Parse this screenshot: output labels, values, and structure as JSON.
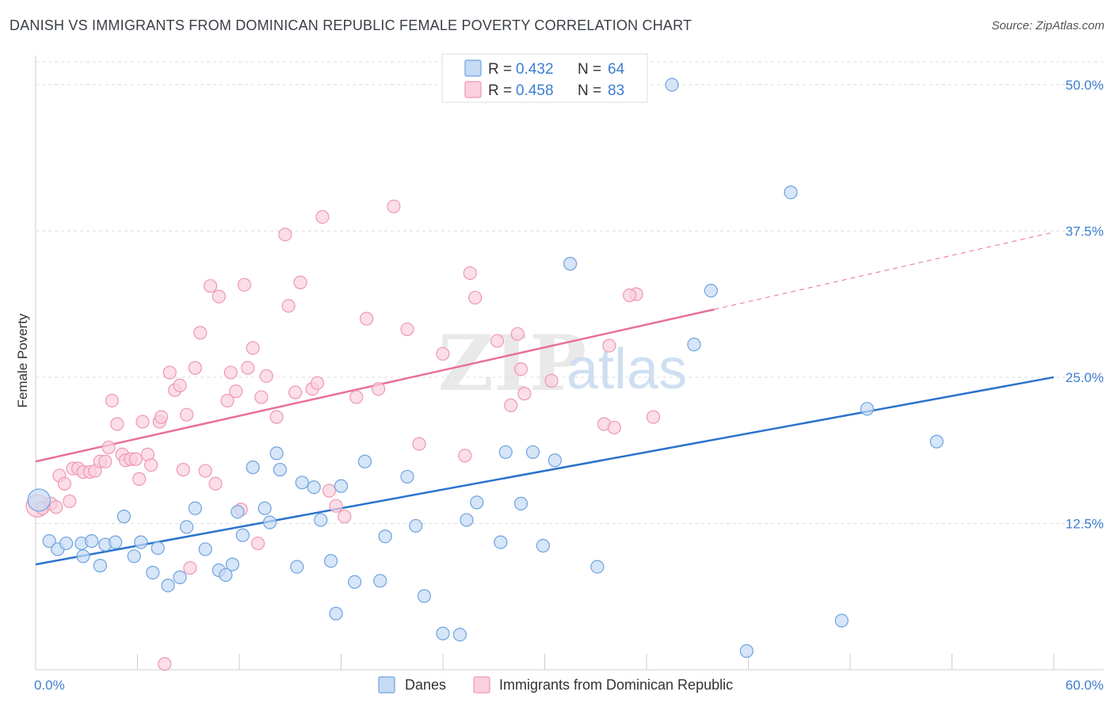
{
  "chart_data": {
    "type": "scatter",
    "title": "DANISH VS IMMIGRANTS FROM DOMINICAN REPUBLIC FEMALE POVERTY CORRELATION CHART",
    "source": "Source: ZipAtlas.com",
    "ylabel": "Female Poverty",
    "xlim": [
      0,
      60
    ],
    "ylim": [
      0,
      52.5
    ],
    "x_tick_labels": [
      "0.0%",
      "60.0%"
    ],
    "y_ticks": [
      12.5,
      25.0,
      37.5,
      50.0
    ],
    "y_tick_labels": [
      "12.5%",
      "25.0%",
      "37.5%",
      "50.0%"
    ],
    "grid": true,
    "legend": {
      "placement": "top-center",
      "entries": [
        {
          "r_label": "R =",
          "r_value": "0.432",
          "n_label": "N =",
          "n_value": "64"
        },
        {
          "r_label": "R =",
          "r_value": "0.458",
          "n_label": "N =",
          "n_value": "83"
        }
      ]
    },
    "series": [
      {
        "name": "Danes",
        "color": "#6ea3e0",
        "fill": "#c5daf3",
        "line_color": "#2a73cc",
        "trend": {
          "x0": 0,
          "y0": 9.0,
          "x1": 60,
          "y1": 25.0
        },
        "points": [
          [
            0.2,
            14.5
          ],
          [
            0.8,
            11.0
          ],
          [
            1.3,
            10.3
          ],
          [
            1.8,
            10.8
          ],
          [
            2.7,
            10.8
          ],
          [
            2.8,
            9.7
          ],
          [
            3.3,
            11.0
          ],
          [
            3.8,
            8.9
          ],
          [
            4.1,
            10.7
          ],
          [
            4.7,
            10.9
          ],
          [
            5.2,
            13.1
          ],
          [
            5.8,
            9.7
          ],
          [
            6.2,
            10.9
          ],
          [
            6.9,
            8.3
          ],
          [
            7.2,
            10.4
          ],
          [
            7.8,
            7.2
          ],
          [
            8.5,
            7.9
          ],
          [
            8.9,
            12.2
          ],
          [
            9.4,
            13.8
          ],
          [
            10.0,
            10.3
          ],
          [
            10.8,
            8.5
          ],
          [
            11.2,
            8.1
          ],
          [
            11.6,
            9.0
          ],
          [
            11.9,
            13.5
          ],
          [
            12.2,
            11.5
          ],
          [
            12.8,
            17.3
          ],
          [
            13.5,
            13.8
          ],
          [
            13.8,
            12.6
          ],
          [
            14.2,
            18.5
          ],
          [
            14.4,
            17.1
          ],
          [
            15.4,
            8.8
          ],
          [
            15.7,
            16.0
          ],
          [
            16.4,
            15.6
          ],
          [
            16.8,
            12.8
          ],
          [
            17.4,
            9.3
          ],
          [
            17.7,
            4.8
          ],
          [
            18.0,
            15.7
          ],
          [
            18.8,
            7.5
          ],
          [
            19.4,
            17.8
          ],
          [
            20.3,
            7.6
          ],
          [
            20.6,
            11.4
          ],
          [
            21.9,
            16.5
          ],
          [
            22.4,
            12.3
          ],
          [
            22.9,
            6.3
          ],
          [
            24.0,
            3.1
          ],
          [
            25.0,
            3.0
          ],
          [
            25.4,
            12.8
          ],
          [
            26.0,
            14.3
          ],
          [
            27.4,
            10.9
          ],
          [
            27.7,
            18.6
          ],
          [
            28.6,
            14.2
          ],
          [
            29.3,
            18.6
          ],
          [
            29.9,
            10.6
          ],
          [
            30.6,
            17.9
          ],
          [
            31.5,
            34.7
          ],
          [
            33.1,
            8.8
          ],
          [
            37.5,
            50.0
          ],
          [
            38.8,
            27.8
          ],
          [
            39.8,
            32.4
          ],
          [
            41.9,
            1.6
          ],
          [
            44.5,
            40.8
          ],
          [
            47.5,
            4.2
          ],
          [
            49.0,
            22.3
          ],
          [
            53.1,
            19.5
          ]
        ]
      },
      {
        "name": "Immigrants from Dominican Republic",
        "color": "#ef97b4",
        "fill": "#fad0dd",
        "line_color": "#e8709a",
        "trend": {
          "x0": 0,
          "y0": 17.8,
          "x1": 40,
          "y1": 30.8
        },
        "trend_dashed": {
          "x0": 40,
          "y0": 30.8,
          "x1": 60,
          "y1": 37.4
        },
        "points": [
          [
            0.1,
            14.0
          ],
          [
            0.4,
            13.8
          ],
          [
            0.9,
            14.2
          ],
          [
            1.2,
            13.9
          ],
          [
            1.4,
            16.6
          ],
          [
            1.7,
            15.9
          ],
          [
            2.0,
            14.4
          ],
          [
            2.2,
            17.2
          ],
          [
            2.5,
            17.2
          ],
          [
            2.8,
            16.9
          ],
          [
            3.2,
            16.9
          ],
          [
            3.5,
            17.0
          ],
          [
            3.8,
            17.8
          ],
          [
            4.1,
            17.8
          ],
          [
            4.3,
            19.0
          ],
          [
            4.5,
            23.0
          ],
          [
            4.8,
            21.0
          ],
          [
            5.1,
            18.4
          ],
          [
            5.3,
            17.9
          ],
          [
            5.6,
            18.0
          ],
          [
            5.9,
            18.0
          ],
          [
            6.1,
            16.3
          ],
          [
            6.3,
            21.2
          ],
          [
            6.6,
            18.4
          ],
          [
            6.8,
            17.5
          ],
          [
            7.3,
            21.2
          ],
          [
            7.4,
            21.6
          ],
          [
            7.6,
            0.5
          ],
          [
            7.9,
            25.4
          ],
          [
            8.2,
            23.9
          ],
          [
            8.5,
            24.3
          ],
          [
            8.7,
            17.1
          ],
          [
            8.9,
            21.8
          ],
          [
            9.1,
            8.7
          ],
          [
            9.4,
            25.8
          ],
          [
            9.7,
            28.8
          ],
          [
            10.0,
            17.0
          ],
          [
            10.3,
            32.8
          ],
          [
            10.6,
            15.9
          ],
          [
            10.8,
            31.9
          ],
          [
            11.3,
            23.0
          ],
          [
            11.5,
            25.4
          ],
          [
            11.8,
            23.8
          ],
          [
            12.1,
            13.7
          ],
          [
            12.3,
            32.9
          ],
          [
            12.5,
            25.8
          ],
          [
            12.8,
            27.5
          ],
          [
            13.1,
            10.8
          ],
          [
            13.3,
            23.3
          ],
          [
            13.6,
            25.1
          ],
          [
            14.2,
            21.6
          ],
          [
            14.7,
            37.2
          ],
          [
            14.9,
            31.1
          ],
          [
            15.3,
            23.7
          ],
          [
            15.6,
            33.1
          ],
          [
            16.3,
            24.0
          ],
          [
            16.6,
            24.5
          ],
          [
            16.9,
            38.7
          ],
          [
            17.3,
            15.3
          ],
          [
            17.7,
            14.0
          ],
          [
            18.2,
            13.1
          ],
          [
            18.9,
            23.3
          ],
          [
            19.5,
            30.0
          ],
          [
            20.2,
            24.0
          ],
          [
            21.1,
            39.6
          ],
          [
            21.9,
            29.1
          ],
          [
            22.6,
            19.3
          ],
          [
            24.0,
            27.0
          ],
          [
            25.3,
            18.3
          ],
          [
            25.6,
            33.9
          ],
          [
            25.9,
            31.8
          ],
          [
            27.2,
            28.1
          ],
          [
            28.0,
            22.6
          ],
          [
            28.4,
            28.7
          ],
          [
            28.6,
            25.7
          ],
          [
            28.8,
            23.6
          ],
          [
            30.4,
            24.7
          ],
          [
            33.5,
            21.0
          ],
          [
            33.8,
            27.7
          ],
          [
            34.1,
            20.7
          ],
          [
            35.4,
            32.1
          ],
          [
            36.4,
            21.6
          ],
          [
            35.0,
            32.0
          ]
        ]
      }
    ]
  },
  "bottom_legend": {
    "danes": "Danes",
    "dominican": "Immigrants from Dominican Republic"
  },
  "watermark": {
    "zip": "ZIP",
    "atlas": "atlas"
  }
}
